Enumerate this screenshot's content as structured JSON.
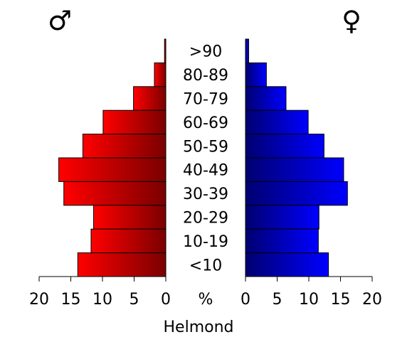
{
  "chart_data": {
    "type": "bar",
    "orientation": "horizontal-pyramid",
    "title": "",
    "xlabel": "Helmond",
    "center_label": "%",
    "male_symbol": "♂",
    "female_symbol": "♀",
    "categories": [
      ">90",
      "80-89",
      "70-79",
      "60-69",
      "50-59",
      "40-49",
      "30-39",
      "20-29",
      "10-19",
      "<10"
    ],
    "series": [
      {
        "values": [
          0.2,
          1.8,
          5.1,
          9.9,
          13.1,
          16.9,
          16.1,
          11.4,
          11.8,
          13.9
        ]
      },
      {
        "values": [
          0.5,
          3.3,
          6.4,
          9.9,
          12.4,
          15.5,
          16.1,
          11.6,
          11.5,
          13.1
        ]
      }
    ],
    "male_ticks": [
      "20",
      "15",
      "10",
      "5",
      "0"
    ],
    "female_ticks": [
      "0",
      "5",
      "10",
      "15",
      "20"
    ],
    "xlim": [
      0,
      20
    ],
    "grid": false,
    "colors": {
      "male_light": "#ff0000",
      "male_dark": "#7a0000",
      "female_light": "#0000ff",
      "female_dark": "#000070"
    }
  }
}
